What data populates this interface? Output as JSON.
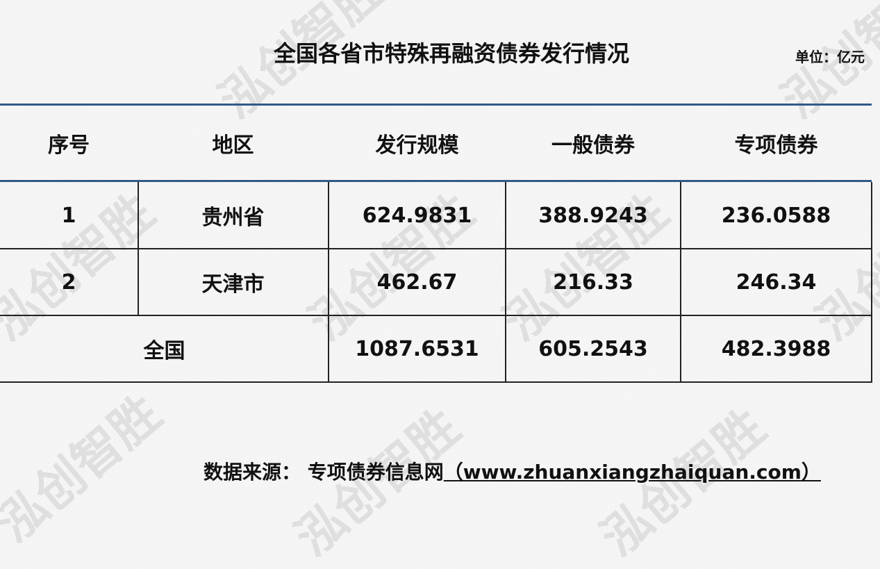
{
  "watermark": "泓创智胜",
  "title": "全国各省市特殊再融资债券发行情况",
  "unit": "单位：亿元",
  "table": {
    "headers": [
      "序号",
      "地区",
      "发行规模",
      "一般债券",
      "专项债券"
    ],
    "rows": [
      [
        "1",
        "贵州省",
        "624.9831",
        "388.9243",
        "236.0588"
      ],
      [
        "2",
        "天津市",
        "462.67",
        "216.33",
        "246.34"
      ]
    ],
    "total": {
      "label": "全国",
      "values": [
        "1087.6531",
        "605.2543",
        "482.3988"
      ]
    }
  },
  "footer": {
    "label": "数据来源：",
    "source": "专项债券信息网",
    "url": "（www.zhuanxiangzhaiquan.com）"
  },
  "colors": {
    "rule": "#2f5b86"
  }
}
